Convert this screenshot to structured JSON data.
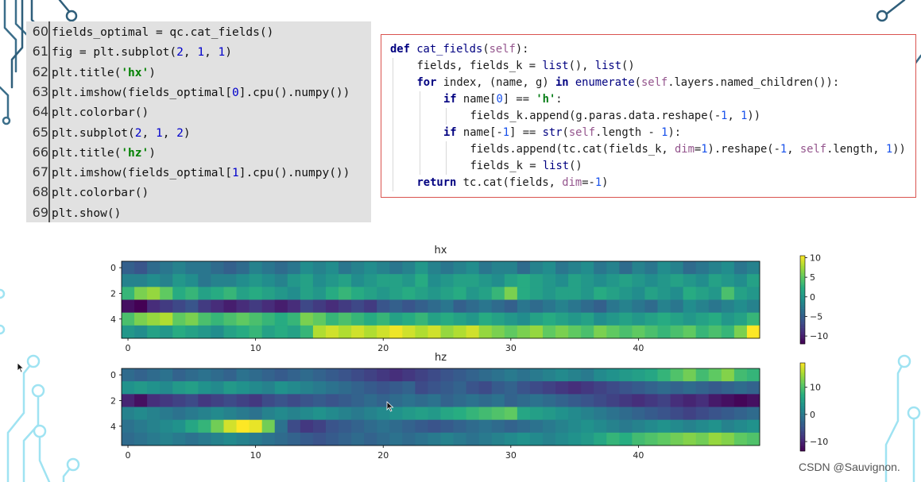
{
  "left_code": {
    "lines": [
      {
        "num": "60",
        "parts": [
          [
            "t",
            "fields_optimal = qc.cat_fields()"
          ]
        ]
      },
      {
        "num": "61",
        "parts": [
          [
            "t",
            "fig = plt.subplot("
          ],
          [
            "n",
            "2"
          ],
          [
            "t",
            ", "
          ],
          [
            "n",
            "1"
          ],
          [
            "t",
            ", "
          ],
          [
            "n",
            "1"
          ],
          [
            "t",
            ")"
          ]
        ]
      },
      {
        "num": "62",
        "parts": [
          [
            "t",
            "plt.title("
          ],
          [
            "s",
            "'hx'"
          ],
          [
            "t",
            ")"
          ]
        ]
      },
      {
        "num": "63",
        "parts": [
          [
            "t",
            "plt.imshow(fields_optimal["
          ],
          [
            "n",
            "0"
          ],
          [
            "t",
            "].cpu().numpy())"
          ]
        ]
      },
      {
        "num": "64",
        "parts": [
          [
            "t",
            "plt.colorbar()"
          ]
        ]
      },
      {
        "num": "65",
        "parts": [
          [
            "t",
            "plt.subplot("
          ],
          [
            "n",
            "2"
          ],
          [
            "t",
            ", "
          ],
          [
            "n",
            "1"
          ],
          [
            "t",
            ", "
          ],
          [
            "n",
            "2"
          ],
          [
            "t",
            ")"
          ]
        ]
      },
      {
        "num": "66",
        "parts": [
          [
            "t",
            "plt.title("
          ],
          [
            "s",
            "'hz'"
          ],
          [
            "t",
            ")"
          ]
        ]
      },
      {
        "num": "67",
        "parts": [
          [
            "t",
            "plt.imshow(fields_optimal["
          ],
          [
            "n",
            "1"
          ],
          [
            "t",
            "].cpu().numpy())"
          ]
        ]
      },
      {
        "num": "68",
        "parts": [
          [
            "t",
            "plt.colorbar()"
          ]
        ]
      },
      {
        "num": "69",
        "parts": [
          [
            "t",
            "plt.show()"
          ]
        ]
      }
    ]
  },
  "right_code": {
    "lines": [
      {
        "indent": 0,
        "parts": [
          [
            "k",
            "def "
          ],
          [
            "f",
            "cat_fields"
          ],
          [
            "t",
            "("
          ],
          [
            "p",
            "self"
          ],
          [
            "t",
            "):"
          ]
        ]
      },
      {
        "indent": 1,
        "parts": [
          [
            "t",
            "fields, fields_k = "
          ],
          [
            "b",
            "list"
          ],
          [
            "t",
            "(), "
          ],
          [
            "b",
            "list"
          ],
          [
            "t",
            "()"
          ]
        ]
      },
      {
        "indent": 1,
        "parts": [
          [
            "k",
            "for "
          ],
          [
            "t",
            "index, (name, g) "
          ],
          [
            "k",
            "in "
          ],
          [
            "b",
            "enumerate"
          ],
          [
            "t",
            "("
          ],
          [
            "p",
            "self"
          ],
          [
            "t",
            ".layers.named_children()):"
          ]
        ]
      },
      {
        "indent": 2,
        "parts": [
          [
            "k",
            "if "
          ],
          [
            "t",
            "name["
          ],
          [
            "n",
            "0"
          ],
          [
            "t",
            "] == "
          ],
          [
            "s",
            "'h'"
          ],
          [
            "t",
            ":"
          ]
        ]
      },
      {
        "indent": 3,
        "parts": [
          [
            "t",
            "fields_k.append(g.paras.data.reshape(-"
          ],
          [
            "n",
            "1"
          ],
          [
            "t",
            ", "
          ],
          [
            "n",
            "1"
          ],
          [
            "t",
            "))"
          ]
        ]
      },
      {
        "indent": 2,
        "parts": [
          [
            "k",
            "if "
          ],
          [
            "t",
            "name[-"
          ],
          [
            "n",
            "1"
          ],
          [
            "t",
            "] == "
          ],
          [
            "b",
            "str"
          ],
          [
            "t",
            "("
          ],
          [
            "p",
            "self"
          ],
          [
            "t",
            ".length - "
          ],
          [
            "n",
            "1"
          ],
          [
            "t",
            "):"
          ]
        ]
      },
      {
        "indent": 3,
        "parts": [
          [
            "t",
            "fields.append(tc.cat(fields_k, "
          ],
          [
            "p",
            "dim"
          ],
          [
            "t",
            "="
          ],
          [
            "n",
            "1"
          ],
          [
            "t",
            ").reshape(-"
          ],
          [
            "n",
            "1"
          ],
          [
            "t",
            ", "
          ],
          [
            "p",
            "self"
          ],
          [
            "t",
            ".length, "
          ],
          [
            "n",
            "1"
          ],
          [
            "t",
            "))"
          ]
        ]
      },
      {
        "indent": 3,
        "parts": [
          [
            "t",
            "fields_k = "
          ],
          [
            "b",
            "list"
          ],
          [
            "t",
            "()"
          ]
        ]
      },
      {
        "indent": 1,
        "parts": [
          [
            "k",
            "return "
          ],
          [
            "t",
            "tc.cat(fields, "
          ],
          [
            "p",
            "dim"
          ],
          [
            "t",
            "=-"
          ],
          [
            "n",
            "1"
          ],
          [
            "t",
            ")"
          ]
        ]
      }
    ]
  },
  "chart_data": [
    {
      "type": "heatmap",
      "title": "hx",
      "rows": 6,
      "cols": 50,
      "x_ticks": [
        "0",
        "10",
        "20",
        "30",
        "40"
      ],
      "y_ticks": [
        "0",
        "2",
        "4"
      ],
      "colorbar_ticks": [
        "10",
        "5",
        "0",
        "−5",
        "−10"
      ],
      "colorbar_values": [
        10,
        5,
        0,
        -5,
        -10
      ],
      "colorbar_range": [
        -12,
        10.5
      ],
      "colormap": "viridis",
      "values": [
        [
          -5,
          -6,
          -4,
          -3,
          -2,
          -3,
          -3,
          -4,
          -5,
          -4,
          -2,
          -3,
          -4,
          -3,
          -1,
          -2,
          -1,
          -3,
          -2,
          -1,
          -2,
          -3,
          -2,
          0,
          -2,
          -3,
          -2,
          -1,
          -3,
          -2,
          -2,
          -4,
          -2,
          -1,
          -3,
          -2,
          -1,
          -3,
          -2,
          -4,
          -2,
          -3,
          -1,
          -2,
          -4,
          -3,
          -2,
          -1,
          -3,
          -2
        ],
        [
          -2,
          -2,
          -1,
          -2,
          0,
          -1,
          -3,
          -2,
          -2,
          -1,
          0,
          -1,
          -2,
          0,
          1,
          -1,
          0,
          1,
          -1,
          0,
          1,
          1,
          0,
          2,
          -1,
          0,
          1,
          1,
          0,
          -1,
          1,
          2,
          1,
          0,
          -1,
          1,
          0,
          -1,
          0,
          1,
          0,
          -1,
          0,
          1,
          0,
          -1,
          1,
          0,
          -1,
          1
        ],
        [
          3,
          6,
          7,
          5,
          2,
          3,
          1,
          2,
          3,
          1,
          2,
          1,
          0,
          -1,
          1,
          0,
          2,
          3,
          2,
          1,
          0,
          1,
          2,
          1,
          0,
          1,
          2,
          0,
          1,
          3,
          6,
          2,
          1,
          0,
          1,
          1,
          0,
          2,
          1,
          0,
          -1,
          1,
          0,
          -1,
          2,
          1,
          0,
          4,
          1,
          0
        ],
        [
          -11,
          -12,
          -9,
          -8,
          -7,
          -6,
          -8,
          -9,
          -10,
          -9,
          -8,
          -9,
          -10,
          -9,
          -7,
          -8,
          -9,
          -8,
          -7,
          -8,
          -6,
          -5,
          -6,
          -5,
          -4,
          -3,
          -5,
          -4,
          -3,
          -4,
          -5,
          -3,
          -4,
          -3,
          -2,
          -3,
          -4,
          -5,
          -3,
          -2,
          -3,
          -4,
          -2,
          -3,
          -1,
          -2,
          -3,
          -2,
          -1,
          -2
        ],
        [
          4,
          6,
          7,
          8,
          5,
          6,
          4,
          3,
          4,
          5,
          4,
          3,
          2,
          3,
          6,
          5,
          3,
          4,
          3,
          2,
          3,
          1,
          2,
          3,
          1,
          2,
          1,
          0,
          2,
          1,
          0,
          -1,
          1,
          2,
          1,
          0,
          1,
          -1,
          0,
          1,
          0,
          1,
          2,
          1,
          0,
          1,
          2,
          0,
          1,
          3
        ],
        [
          0,
          -1,
          1,
          0,
          2,
          1,
          0,
          -1,
          1,
          2,
          3,
          1,
          2,
          1,
          3,
          8,
          9,
          8,
          9,
          8,
          9,
          10,
          9,
          8,
          9,
          7,
          8,
          9,
          7,
          6,
          5,
          6,
          7,
          5,
          6,
          5,
          4,
          6,
          5,
          4,
          5,
          4,
          3,
          4,
          5,
          3,
          4,
          3,
          6,
          11
        ]
      ]
    },
    {
      "type": "heatmap",
      "title": "hz",
      "rows": 6,
      "cols": 50,
      "x_ticks": [
        "0",
        "10",
        "20",
        "30",
        "40"
      ],
      "y_ticks": [
        "0",
        "2",
        "4"
      ],
      "colorbar_ticks": [
        "10",
        "0",
        "−10"
      ],
      "colorbar_values": [
        10,
        0,
        -10
      ],
      "colorbar_range": [
        -13.5,
        19
      ],
      "colormap": "viridis",
      "values": [
        [
          -2,
          -3,
          -2,
          -1,
          -3,
          -2,
          -1,
          -2,
          -3,
          -1,
          -2,
          -3,
          -4,
          -3,
          -2,
          -3,
          -4,
          -5,
          -6,
          -7,
          -8,
          -9,
          -8,
          -7,
          -6,
          -5,
          -4,
          -3,
          -2,
          -1,
          0,
          -1,
          0,
          1,
          2,
          1,
          0,
          2,
          3,
          4,
          5,
          6,
          8,
          10,
          12,
          9,
          11,
          13,
          9,
          8
        ],
        [
          3,
          4,
          3,
          2,
          4,
          5,
          3,
          2,
          4,
          3,
          2,
          1,
          3,
          2,
          1,
          0,
          -1,
          -2,
          -3,
          -4,
          -5,
          -4,
          -3,
          -6,
          -5,
          -4,
          -3,
          -5,
          -6,
          -4,
          -3,
          -5,
          -6,
          -7,
          -8,
          -9,
          -8,
          -7,
          -6,
          -5,
          -4,
          -3,
          -2,
          -3,
          -2,
          -3,
          -4,
          -3,
          -2,
          -3
        ],
        [
          -10,
          -12,
          -9,
          -8,
          -7,
          -6,
          -8,
          -7,
          -6,
          -7,
          -8,
          -6,
          -5,
          -6,
          -5,
          -4,
          -5,
          -4,
          -3,
          -2,
          -3,
          -2,
          -1,
          -2,
          -1,
          -3,
          -2,
          -1,
          -2,
          -1,
          -3,
          -2,
          -1,
          -2,
          -3,
          -4,
          -5,
          -6,
          -7,
          -8,
          -9,
          -8,
          -7,
          -9,
          -10,
          -9,
          -11,
          -12,
          -13,
          -12
        ],
        [
          1,
          2,
          1,
          0,
          -1,
          0,
          1,
          2,
          1,
          0,
          -1,
          1,
          2,
          1,
          2,
          3,
          2,
          1,
          0,
          1,
          2,
          3,
          4,
          5,
          4,
          6,
          7,
          8,
          9,
          10,
          11,
          6,
          5,
          4,
          3,
          2,
          1,
          0,
          -1,
          -2,
          -3,
          -4,
          -5,
          -6,
          -7,
          -6,
          -5,
          -4,
          -3,
          -2
        ],
        [
          -1,
          0,
          1,
          2,
          3,
          6,
          8,
          12,
          17,
          19,
          18,
          12,
          -1,
          -6,
          -8,
          -7,
          -5,
          -4,
          -3,
          -2,
          -1,
          -2,
          -3,
          -4,
          -5,
          -4,
          -3,
          -2,
          -1,
          -2,
          -3,
          -2,
          -1,
          0,
          1,
          2,
          3,
          2,
          1,
          0,
          1,
          2,
          3,
          2,
          1,
          2,
          3,
          1,
          2,
          3
        ],
        [
          -2,
          -1,
          0,
          1,
          0,
          -1,
          0,
          1,
          2,
          1,
          0,
          -1,
          -2,
          -3,
          -4,
          -5,
          -4,
          -3,
          -2,
          -3,
          -2,
          -1,
          -2,
          -1,
          0,
          1,
          0,
          -1,
          0,
          1,
          2,
          3,
          2,
          1,
          2,
          3,
          4,
          6,
          8,
          7,
          9,
          10,
          11,
          12,
          13,
          12,
          14,
          13,
          11,
          10
        ]
      ]
    }
  ],
  "watermark": "CSDN @Sauvignon."
}
